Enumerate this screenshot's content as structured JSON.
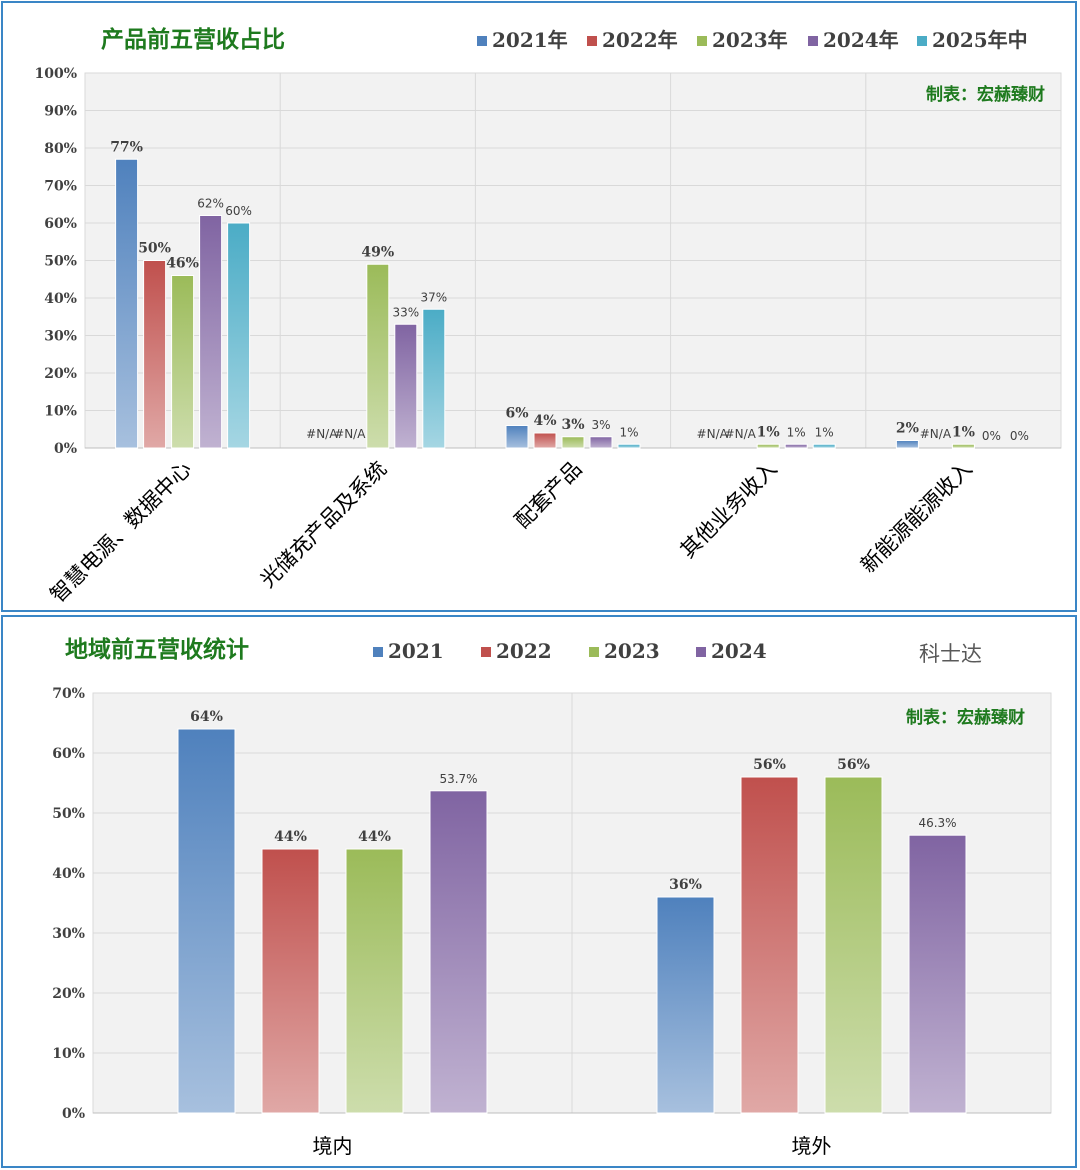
{
  "chart_data": [
    {
      "type": "bar",
      "title": "产品前五营收占比",
      "credit": "制表：宏赫臻财",
      "legend_position": "top",
      "categories": [
        "智慧电源、数据中心",
        "光储充产品及系统",
        "配套产品",
        "其他业务收入",
        "新能源能源收入"
      ],
      "series": [
        {
          "name": "2021年",
          "color": "#4f81bd",
          "values": [
            77,
            null,
            6,
            null,
            2
          ],
          "labels": [
            "77%",
            "#N/A",
            "6%",
            "#N/A",
            "2%"
          ]
        },
        {
          "name": "2022年",
          "color": "#c0504d",
          "values": [
            50,
            null,
            4,
            null,
            null
          ],
          "labels": [
            "50%",
            "#N/A",
            "4%",
            "#N/A",
            "#N/A"
          ]
        },
        {
          "name": "2023年",
          "color": "#9bbb59",
          "values": [
            46,
            49,
            3,
            1,
            1
          ],
          "labels": [
            "46%",
            "49%",
            "3%",
            "1%",
            "1%"
          ]
        },
        {
          "name": "2024年",
          "color": "#8064a2",
          "values": [
            62,
            33,
            3,
            1,
            0
          ],
          "labels": [
            "62%",
            "33%",
            "3%",
            "1%",
            "0%"
          ]
        },
        {
          "name": "2025年中",
          "color": "#4bacc6",
          "values": [
            60,
            37,
            1,
            1,
            0
          ],
          "labels": [
            "60%",
            "37%",
            "1%",
            "1%",
            "0%"
          ]
        }
      ],
      "ylim": [
        0,
        100
      ],
      "yticks": [
        "0%",
        "10%",
        "20%",
        "30%",
        "40%",
        "50%",
        "60%",
        "70%",
        "80%",
        "90%",
        "100%"
      ],
      "grid": true
    },
    {
      "type": "bar",
      "title": "地域前五营收统计",
      "credit": "制表：宏赫臻财",
      "company": "科士达",
      "legend_position": "top",
      "categories": [
        "境内",
        "境外"
      ],
      "series": [
        {
          "name": "2021",
          "color": "#4f81bd",
          "values": [
            64,
            36
          ],
          "labels": [
            "64%",
            "36%"
          ]
        },
        {
          "name": "2022",
          "color": "#c0504d",
          "values": [
            44,
            56
          ],
          "labels": [
            "44%",
            "56%"
          ]
        },
        {
          "name": "2023",
          "color": "#9bbb59",
          "values": [
            44,
            56
          ],
          "labels": [
            "44%",
            "56%"
          ]
        },
        {
          "name": "2024",
          "color": "#8064a2",
          "values": [
            53.7,
            46.3
          ],
          "labels": [
            "53.7%",
            "46.3%"
          ]
        }
      ],
      "ylim": [
        0,
        70
      ],
      "yticks": [
        "0%",
        "10%",
        "20%",
        "30%",
        "40%",
        "50%",
        "60%",
        "70%"
      ],
      "grid": true
    }
  ]
}
